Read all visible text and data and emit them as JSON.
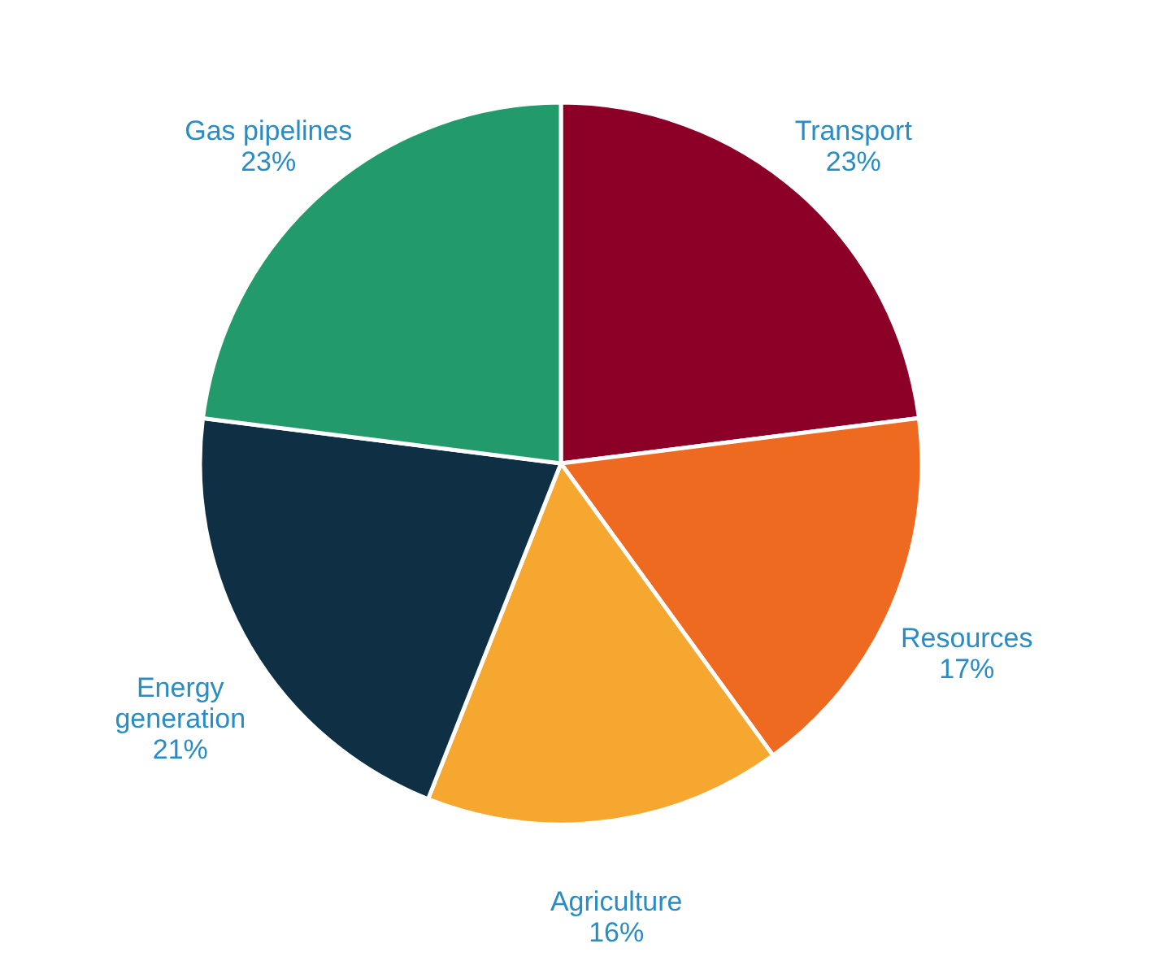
{
  "chart_data": {
    "type": "pie",
    "categories": [
      "Transport",
      "Resources",
      "Agriculture",
      "Energy generation",
      "Gas pipelines"
    ],
    "values": [
      23,
      17,
      16,
      21,
      23
    ],
    "colors": [
      "#8c0028",
      "#ee6a21",
      "#f6a72f",
      "#0f2f45",
      "#229a6c"
    ],
    "value_labels": [
      "23%",
      "17%",
      "16%",
      "21%",
      "23%"
    ],
    "legend": false
  }
}
